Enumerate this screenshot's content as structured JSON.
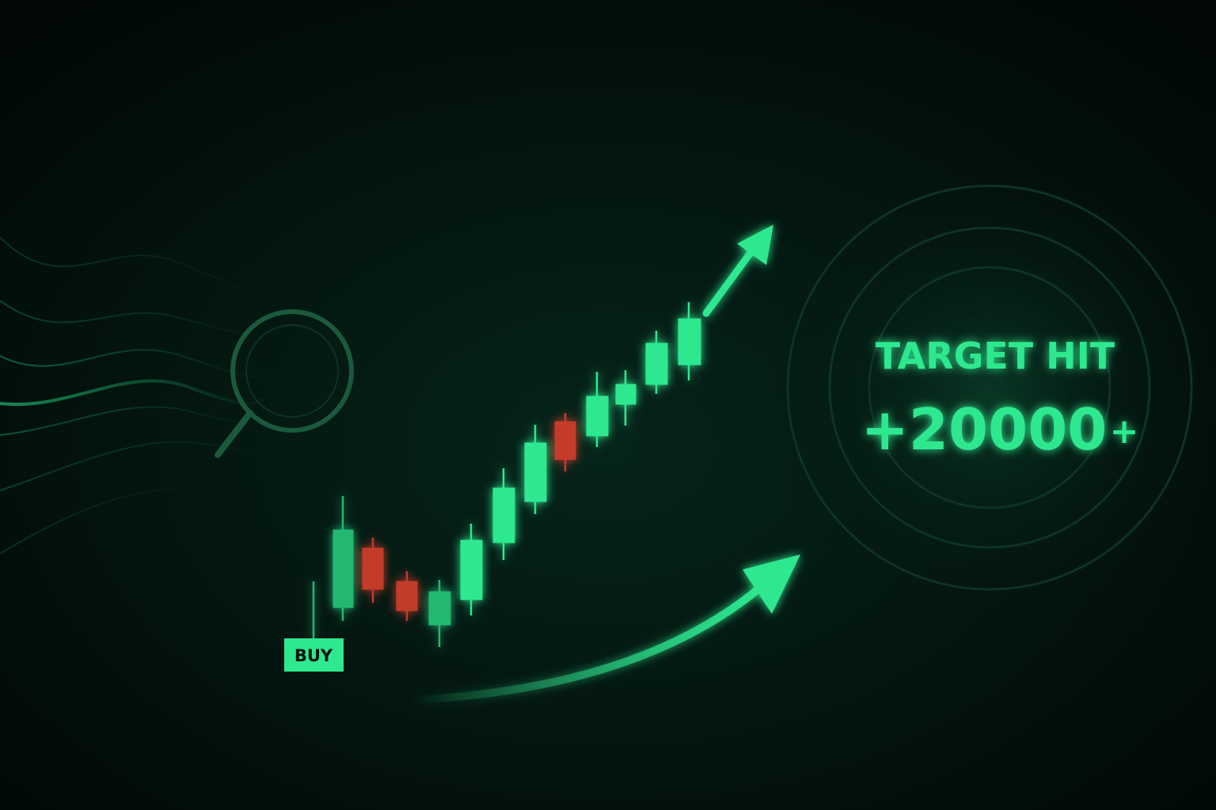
{
  "badge": {
    "label": "BUY"
  },
  "target": {
    "title": "TARGET HIT",
    "amount": "+20000",
    "suffix": "+"
  }
}
